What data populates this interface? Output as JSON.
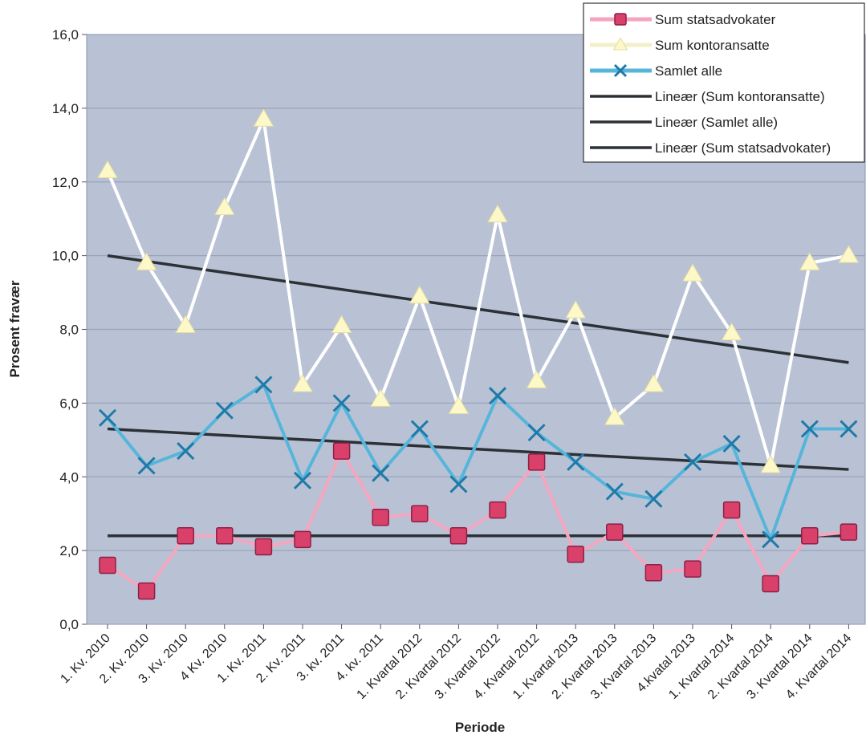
{
  "chart_data": {
    "type": "line",
    "xlabel": "Periode",
    "ylabel": "Prosent fravær",
    "ylim": [
      0,
      16
    ],
    "y_ticks": [
      "0,0",
      "2,0",
      "4,0",
      "6,0",
      "8,0",
      "10,0",
      "12,0",
      "14,0",
      "16,0"
    ],
    "grid": true,
    "legend_position": "top-right",
    "categories": [
      "1. Kv. 2010",
      "2. Kv. 2010",
      "3. Kv. 2010",
      "4 Kv. 2010",
      "1. Kv. 2011",
      "2. Kv. 2011",
      "3. kv. 2011",
      "4. kv. 2011",
      "1. Kvartal 2012",
      "2. Kvartal 2012",
      "3. Kvartal 2012",
      "4. Kvartal 2012",
      "1. Kvartal 2013",
      "2. Kvartal 2013",
      "3. Kvartal 2013",
      "4.kvatal 2013",
      "1. Kvartal 2014",
      "2. Kvartal 2014",
      "3. Kvartal 2014",
      "4. Kvartal 2014"
    ],
    "series": [
      {
        "name": "Sum statsadvokater",
        "color": "#f4a6bf",
        "marker": "square",
        "marker_color": "#d9416b",
        "values": [
          1.6,
          0.9,
          2.4,
          2.4,
          2.1,
          2.3,
          4.7,
          2.9,
          3.0,
          2.4,
          3.1,
          4.4,
          1.9,
          2.5,
          1.4,
          1.5,
          3.1,
          1.1,
          2.4,
          2.5
        ]
      },
      {
        "name": "Sum kontoransatte",
        "color": "#ffffff",
        "marker": "triangle",
        "marker_color": "#fdf8c8",
        "values": [
          12.3,
          9.8,
          8.1,
          11.3,
          13.7,
          6.5,
          8.1,
          6.1,
          8.9,
          5.9,
          11.1,
          6.6,
          8.5,
          5.6,
          6.5,
          9.5,
          7.9,
          4.3,
          9.8,
          10.0
        ]
      },
      {
        "name": "Samlet alle",
        "color": "#56b5da",
        "marker": "x",
        "marker_color": "#1f7aa8",
        "values": [
          5.6,
          4.3,
          4.7,
          5.8,
          6.5,
          3.9,
          6.0,
          4.1,
          5.3,
          3.8,
          6.2,
          5.2,
          4.4,
          3.6,
          3.4,
          4.4,
          4.9,
          2.3,
          5.3,
          5.3
        ]
      },
      {
        "name": "Lineær (Sum kontoransatte)",
        "color": "#2c3136",
        "trend": true,
        "values_start_end": [
          10.0,
          7.1
        ]
      },
      {
        "name": "Lineær (Samlet alle)",
        "color": "#2c3136",
        "trend": true,
        "values_start_end": [
          5.3,
          4.2
        ]
      },
      {
        "name": "Lineær (Sum statsadvokater)",
        "color": "#2c3136",
        "trend": true,
        "values_start_end": [
          2.4,
          2.4
        ]
      }
    ],
    "plot_background": "#b9c2d5",
    "gridline_color": "#9aa3b8"
  }
}
